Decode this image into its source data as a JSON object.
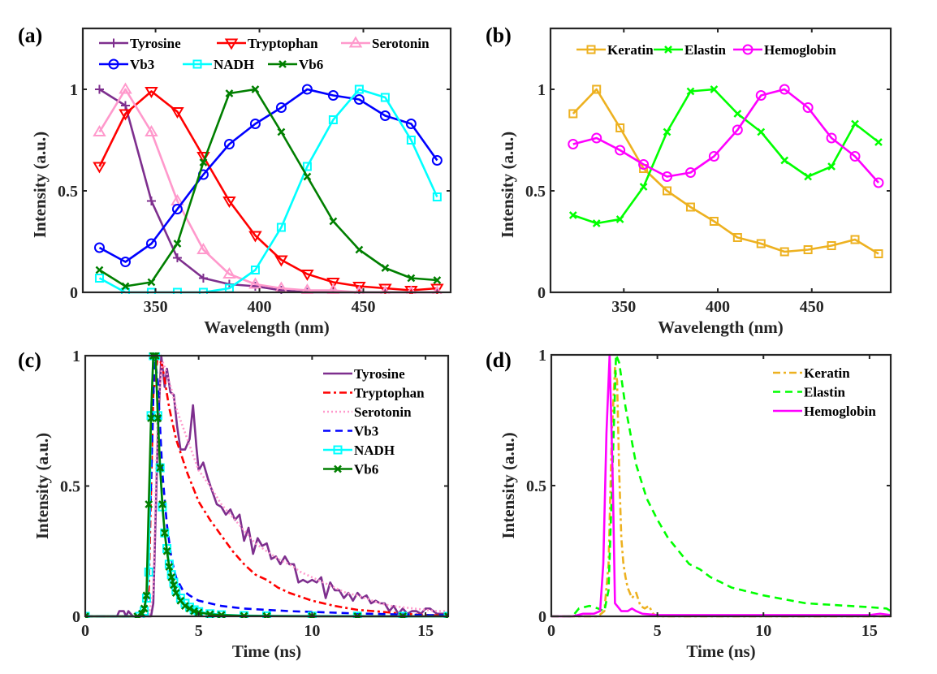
{
  "chart_data": [
    {
      "id": "a",
      "panel_label": "(a)",
      "type": "line",
      "title": "",
      "xlabel": "Wavelength (nm)",
      "ylabel": "Intensity (a.u.)",
      "xlim": [
        315,
        492
      ],
      "ylim": [
        0,
        1.3
      ],
      "xticks": [
        350,
        400,
        450
      ],
      "yticks": [
        0,
        0.5,
        1
      ],
      "ytick_labels": [
        "0",
        "0.5",
        "1"
      ],
      "grid": false,
      "legend_position": "top",
      "x": [
        323,
        335.5,
        348,
        360.5,
        373,
        385.5,
        398,
        410.5,
        423,
        435.5,
        448,
        460.5,
        473,
        485.5
      ],
      "series": [
        {
          "name": "Tyrosine",
          "color": "#7E2F8E",
          "marker": "plus",
          "line": "solid",
          "values": [
            1.0,
            0.92,
            0.45,
            0.17,
            0.07,
            0.04,
            0.03,
            0.01,
            0.0,
            0.0,
            0.0,
            0.0,
            0.0,
            0.0
          ]
        },
        {
          "name": "Tryptophan",
          "color": "#FF0000",
          "marker": "triangle-down",
          "line": "solid",
          "values": [
            0.62,
            0.88,
            0.99,
            0.89,
            0.67,
            0.45,
            0.28,
            0.16,
            0.09,
            0.05,
            0.03,
            0.02,
            0.01,
            0.02
          ]
        },
        {
          "name": "Serotonin",
          "color": "#FF99CC",
          "marker": "triangle-up",
          "line": "solid",
          "values": [
            0.79,
            1.0,
            0.79,
            0.45,
            0.21,
            0.09,
            0.04,
            0.02,
            0.01,
            0.01,
            0.0,
            0.0,
            0.0,
            0.0
          ]
        },
        {
          "name": "Vb3",
          "color": "#0000FF",
          "marker": "circle",
          "line": "solid",
          "values": [
            0.22,
            0.15,
            0.24,
            0.41,
            0.58,
            0.73,
            0.83,
            0.91,
            1.0,
            0.97,
            0.95,
            0.87,
            0.83,
            0.65
          ]
        },
        {
          "name": "NADH",
          "color": "#00FFFF",
          "marker": "square",
          "line": "solid",
          "values": [
            0.07,
            0.0,
            0.0,
            0.0,
            0.0,
            0.02,
            0.11,
            0.32,
            0.62,
            0.85,
            1.0,
            0.96,
            0.75,
            0.47
          ]
        },
        {
          "name": "Vb6",
          "color": "#007F00",
          "marker": "x",
          "line": "solid",
          "values": [
            0.11,
            0.03,
            0.05,
            0.24,
            0.64,
            0.98,
            1.0,
            0.79,
            0.57,
            0.35,
            0.21,
            0.12,
            0.07,
            0.06
          ]
        }
      ]
    },
    {
      "id": "b",
      "panel_label": "(b)",
      "type": "line",
      "title": "",
      "xlabel": "Wavelength (nm)",
      "ylabel": "Intensity (a.u.)",
      "xlim": [
        311,
        492
      ],
      "ylim": [
        0,
        1.3
      ],
      "xticks": [
        350,
        400,
        450
      ],
      "yticks": [
        0,
        0.5,
        1
      ],
      "ytick_labels": [
        "0",
        "0.5",
        "1"
      ],
      "grid": false,
      "legend_position": "top",
      "x": [
        323,
        335.5,
        348,
        360.5,
        373,
        385.5,
        398,
        410.5,
        423,
        435.5,
        448,
        460.5,
        473,
        485.5
      ],
      "series": [
        {
          "name": "Keratin",
          "color": "#EDB120",
          "marker": "square",
          "line": "solid",
          "values": [
            0.88,
            1.0,
            0.81,
            0.61,
            0.5,
            0.42,
            0.35,
            0.27,
            0.24,
            0.2,
            0.21,
            0.23,
            0.26,
            0.19
          ]
        },
        {
          "name": "Elastin",
          "color": "#00FF00",
          "marker": "x",
          "line": "solid",
          "values": [
            0.38,
            0.34,
            0.36,
            0.52,
            0.79,
            0.99,
            1.0,
            0.88,
            0.79,
            0.65,
            0.57,
            0.62,
            0.83,
            0.74
          ]
        },
        {
          "name": "Hemoglobin",
          "color": "#FF00FF",
          "marker": "circle",
          "line": "solid",
          "values": [
            0.73,
            0.76,
            0.7,
            0.63,
            0.57,
            0.59,
            0.67,
            0.8,
            0.97,
            1.0,
            0.91,
            0.76,
            0.67,
            0.54
          ]
        }
      ]
    },
    {
      "id": "c",
      "panel_label": "(c)",
      "type": "line",
      "title": "",
      "xlabel": "Time (ns)",
      "ylabel": "Intensity (a.u.)",
      "xlim": [
        0,
        16
      ],
      "ylim": [
        0,
        1
      ],
      "xticks": [
        0,
        5,
        10,
        15
      ],
      "yticks": [
        0,
        0.5,
        1
      ],
      "ytick_labels": [
        "0",
        "0.5",
        "1"
      ],
      "grid": false,
      "legend_position": "top-right",
      "series": [
        {
          "name": "Tyrosine",
          "color": "#7E2F8E",
          "line": "solid",
          "marker": "none",
          "x": [
            0,
            1.4,
            1.5,
            1.7,
            1.8,
            1.9,
            2.1,
            2.9,
            3.0,
            3.2,
            3.35,
            3.5,
            3.6,
            3.75,
            3.9,
            4.05,
            4.2,
            4.4,
            4.6,
            4.75,
            4.9,
            5.0,
            5.2,
            5.4,
            5.6,
            5.8,
            6.0,
            6.2,
            6.4,
            6.6,
            6.8,
            7.0,
            7.2,
            7.4,
            7.6,
            7.8,
            8.0,
            8.2,
            8.4,
            8.6,
            8.8,
            9.0,
            9.2,
            9.4,
            9.6,
            9.8,
            10.0,
            10.2,
            10.4,
            10.6,
            10.8,
            11.0,
            11.2,
            11.4,
            11.6,
            11.8,
            12.0,
            12.2,
            12.4,
            12.6,
            12.8,
            13.0,
            13.2,
            13.4,
            13.6,
            13.8,
            14.0,
            14.2,
            14.4,
            14.6,
            14.8,
            15.0,
            15.2,
            15.5,
            16.0
          ],
          "values": [
            0,
            0,
            0.02,
            0.02,
            0,
            0.02,
            0,
            0,
            0.05,
            0.7,
            1.0,
            0.88,
            0.95,
            0.86,
            0.85,
            0.73,
            0.64,
            0.64,
            0.68,
            0.81,
            0.65,
            0.56,
            0.59,
            0.53,
            0.48,
            0.43,
            0.42,
            0.39,
            0.41,
            0.37,
            0.39,
            0.29,
            0.34,
            0.24,
            0.3,
            0.27,
            0.28,
            0.22,
            0.23,
            0.2,
            0.23,
            0.2,
            0.2,
            0.13,
            0.14,
            0.13,
            0.14,
            0.13,
            0.15,
            0.07,
            0.13,
            0.1,
            0.1,
            0.07,
            0.09,
            0.06,
            0.09,
            0.07,
            0.08,
            0.05,
            0.06,
            0.05,
            0.05,
            0.02,
            0.04,
            0.01,
            0.03,
            0.01,
            0.02,
            0.02,
            0.01,
            0.03,
            0.03,
            0.01,
            0.01
          ]
        },
        {
          "name": "Tryptophan",
          "color": "#FF0000",
          "line": "dashdot",
          "marker": "none",
          "x": [
            0,
            2.5,
            2.8,
            3.0,
            3.2,
            3.4,
            3.7,
            4.0,
            4.5,
            5.0,
            5.5,
            6.0,
            6.5,
            7.0,
            7.5,
            8.0,
            8.5,
            9.0,
            9.5,
            10.0,
            11.0,
            12.0,
            13.0,
            14.0,
            15.0,
            16.0
          ],
          "values": [
            0,
            0,
            0.1,
            0.85,
            1.0,
            0.96,
            0.8,
            0.68,
            0.55,
            0.44,
            0.37,
            0.31,
            0.25,
            0.2,
            0.16,
            0.14,
            0.11,
            0.09,
            0.075,
            0.06,
            0.04,
            0.025,
            0.018,
            0.01,
            0.005,
            0.003
          ]
        },
        {
          "name": "Serotonin",
          "color": "#FF99CC",
          "line": "dotted",
          "marker": "none",
          "x": [
            0,
            2.8,
            3.0,
            3.2,
            3.4,
            3.6,
            3.8,
            4.0,
            4.5,
            5.0,
            5.5,
            6.0,
            6.5,
            7.0,
            7.5,
            8.0,
            8.5,
            9.0,
            9.5,
            10.0,
            10.5,
            11.0,
            11.5,
            12.0,
            12.5,
            13.0,
            13.5,
            14.0,
            14.5,
            15.0,
            15.5,
            16.0
          ],
          "values": [
            0,
            0,
            0.1,
            0.8,
            0.98,
            0.93,
            0.87,
            0.8,
            0.68,
            0.56,
            0.5,
            0.43,
            0.38,
            0.33,
            0.28,
            0.25,
            0.22,
            0.2,
            0.17,
            0.15,
            0.13,
            0.11,
            0.09,
            0.08,
            0.065,
            0.05,
            0.04,
            0.035,
            0.03,
            0.025,
            0.02,
            0.02
          ]
        },
        {
          "name": "Vb3",
          "color": "#0000FF",
          "line": "dashed",
          "marker": "none",
          "x": [
            0,
            2.5,
            2.7,
            2.9,
            3.05,
            3.2,
            3.4,
            3.6,
            3.8,
            4.0,
            4.3,
            4.6,
            5.0,
            5.5,
            6.0,
            6.5,
            7.0,
            8.0,
            9.0,
            10.0,
            11.0,
            12.0,
            13.0,
            14.0,
            15.0,
            16.0
          ],
          "values": [
            0,
            0,
            0.05,
            0.5,
            1.0,
            0.9,
            0.55,
            0.35,
            0.22,
            0.15,
            0.1,
            0.08,
            0.06,
            0.05,
            0.04,
            0.035,
            0.03,
            0.025,
            0.02,
            0.017,
            0.014,
            0.011,
            0.009,
            0.007,
            0.005,
            0.004
          ]
        },
        {
          "name": "NADH",
          "color": "#00FFFF",
          "line": "solid",
          "marker": "square",
          "x": [
            0,
            2.4,
            2.6,
            2.7,
            2.8,
            2.9,
            3.0,
            3.1,
            3.2,
            3.3,
            3.4,
            3.5,
            3.6,
            3.7,
            3.8,
            3.9,
            4.0,
            4.2,
            4.4,
            4.6,
            4.8,
            5.0,
            5.5,
            6.0,
            7.0,
            8.0,
            10.0,
            12.0,
            14.0,
            16.0
          ],
          "values": [
            0,
            0,
            0.02,
            0.07,
            0.17,
            0.77,
            1.0,
            1.0,
            0.77,
            0.57,
            0.42,
            0.32,
            0.26,
            0.2,
            0.16,
            0.13,
            0.1,
            0.07,
            0.05,
            0.035,
            0.025,
            0.018,
            0.01,
            0.006,
            0.003,
            0.002,
            0.001,
            0.001,
            0.0,
            0.0
          ]
        },
        {
          "name": "Vb6",
          "color": "#007F00",
          "line": "solid",
          "marker": "x",
          "x": [
            0,
            2.3,
            2.5,
            2.6,
            2.7,
            2.8,
            2.9,
            3.0,
            3.1,
            3.2,
            3.3,
            3.4,
            3.5,
            3.6,
            3.7,
            3.8,
            3.9,
            4.0,
            4.2,
            4.4,
            4.6,
            4.8,
            5.0,
            5.5,
            6.0,
            7.0,
            8.0,
            10.0,
            12.0,
            14.0,
            16.0
          ],
          "values": [
            0,
            0,
            0.01,
            0.03,
            0.08,
            0.43,
            0.76,
            1.0,
            1.0,
            0.76,
            0.57,
            0.43,
            0.32,
            0.25,
            0.19,
            0.15,
            0.12,
            0.09,
            0.06,
            0.04,
            0.03,
            0.02,
            0.015,
            0.008,
            0.005,
            0.002,
            0.001,
            0.0,
            0.0,
            0.0,
            0.0
          ]
        }
      ]
    },
    {
      "id": "d",
      "panel_label": "(d)",
      "type": "line",
      "title": "",
      "xlabel": "Time (ns)",
      "ylabel": "Intensity (a.u.)",
      "xlim": [
        0,
        16
      ],
      "ylim": [
        0,
        1
      ],
      "xticks": [
        0,
        5,
        10,
        15
      ],
      "yticks": [
        0,
        0.5,
        1
      ],
      "ytick_labels": [
        "0",
        "0.5",
        "1"
      ],
      "grid": false,
      "legend_position": "top-right",
      "series": [
        {
          "name": "Keratin",
          "color": "#EDB120",
          "line": "dashdot",
          "marker": "none",
          "x": [
            0,
            2.2,
            2.5,
            2.7,
            2.85,
            3.0,
            3.1,
            3.2,
            3.3,
            3.4,
            3.5,
            3.6,
            3.8,
            4.0,
            4.2,
            4.4,
            4.6,
            4.8,
            5.0,
            8.0,
            12.0,
            16.0
          ],
          "values": [
            0,
            0,
            0.02,
            0.2,
            0.7,
            0.95,
            0.9,
            0.55,
            0.3,
            0.2,
            0.15,
            0.11,
            0.07,
            0.09,
            0.04,
            0.03,
            0.04,
            0.01,
            0.0,
            0.0,
            0.0,
            0.0
          ]
        },
        {
          "name": "Elastin",
          "color": "#00FF00",
          "line": "dashed",
          "marker": "none",
          "x": [
            0,
            1.0,
            1.3,
            1.8,
            2.2,
            2.5,
            2.7,
            2.9,
            3.05,
            3.2,
            3.5,
            4.0,
            4.5,
            5.0,
            5.5,
            6.0,
            6.5,
            7.0,
            7.5,
            8.0,
            8.5,
            9.0,
            9.5,
            10.0,
            11.0,
            12.0,
            13.0,
            14.0,
            15.0,
            15.8,
            16.0
          ],
          "values": [
            0,
            0,
            0.03,
            0.04,
            0.03,
            0.02,
            0.1,
            0.6,
            1.0,
            0.97,
            0.8,
            0.58,
            0.45,
            0.37,
            0.3,
            0.25,
            0.2,
            0.18,
            0.15,
            0.13,
            0.11,
            0.1,
            0.09,
            0.08,
            0.065,
            0.05,
            0.045,
            0.04,
            0.035,
            0.03,
            0.02
          ]
        },
        {
          "name": "Hemoglobin",
          "color": "#FF00FF",
          "line": "solid",
          "marker": "none",
          "x": [
            0,
            1.0,
            1.5,
            2.0,
            2.3,
            2.45,
            2.6,
            2.75,
            2.9,
            3.0,
            3.1,
            3.3,
            3.6,
            3.8,
            4.0,
            4.3,
            5.0,
            8.0,
            12.0,
            15.0,
            15.5,
            16.0
          ],
          "values": [
            0,
            0,
            0.01,
            0.01,
            0.02,
            0.2,
            0.7,
            1.0,
            0.5,
            0.05,
            0.04,
            0.02,
            0.02,
            0.03,
            0.02,
            0.01,
            0.005,
            0.005,
            0.005,
            0.005,
            0.01,
            0.005
          ]
        }
      ]
    }
  ]
}
